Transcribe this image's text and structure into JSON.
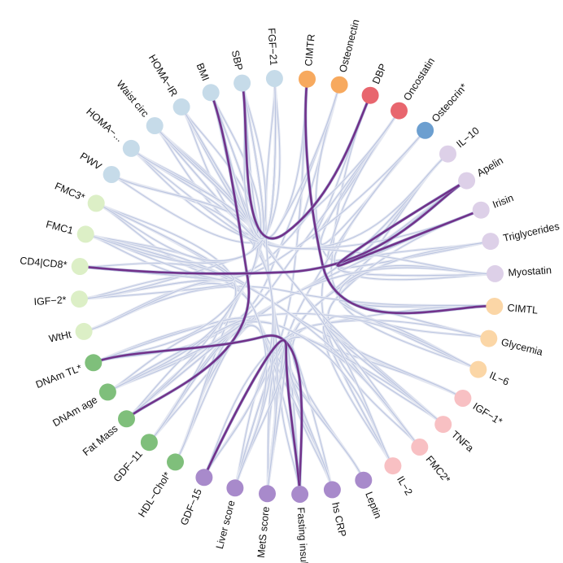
{
  "diagram": {
    "type": "hierarchical edge bundling (circular dendrogram)",
    "colors": {
      "bundle_light": "#e4e8f2",
      "bundle_mid": "#9aaad4",
      "bundle_dark": "#6e2a86",
      "bundle_accent": "#5a1572"
    },
    "nodes": [
      {
        "label": "CIMTR",
        "color": "#f7a95e",
        "group": "orange"
      },
      {
        "label": "Osteonectin",
        "color": "#f7a95e",
        "group": "orange"
      },
      {
        "label": "DBP",
        "color": "#e8666e",
        "group": "red"
      },
      {
        "label": "Oncostatin",
        "color": "#e8666e",
        "group": "red"
      },
      {
        "label": "Osteocrin*",
        "color": "#6c9fd0",
        "group": "blue"
      },
      {
        "label": "IL−10",
        "color": "#ddd0e8",
        "group": "lavender"
      },
      {
        "label": "Apelin",
        "color": "#ddd0e8",
        "group": "lavender"
      },
      {
        "label": "Irisin",
        "color": "#ddd0e8",
        "group": "lavender"
      },
      {
        "label": "Triglycerides",
        "color": "#ddd0e8",
        "group": "lavender"
      },
      {
        "label": "Myostatin",
        "color": "#ddd0e8",
        "group": "lavender"
      },
      {
        "label": "CIMTL",
        "color": "#fbd6a6",
        "group": "peach"
      },
      {
        "label": "Glycemia",
        "color": "#fbd6a6",
        "group": "peach"
      },
      {
        "label": "IL−6",
        "color": "#fbd6a6",
        "group": "peach"
      },
      {
        "label": "IGF−1*",
        "color": "#f8c0c3",
        "group": "pink"
      },
      {
        "label": "TNFa",
        "color": "#f8c0c3",
        "group": "pink"
      },
      {
        "label": "FMC2*",
        "color": "#f8c0c3",
        "group": "pink"
      },
      {
        "label": "IL−2",
        "color": "#f8c0c3",
        "group": "pink"
      },
      {
        "label": "Leptin",
        "color": "#a88acb",
        "group": "purple"
      },
      {
        "label": "hs CRP",
        "color": "#a88acb",
        "group": "purple"
      },
      {
        "label": "Fasting insulin",
        "color": "#a88acb",
        "group": "purple"
      },
      {
        "label": "MetS score",
        "color": "#a88acb",
        "group": "purple"
      },
      {
        "label": "Liver score",
        "color": "#a88acb",
        "group": "purple"
      },
      {
        "label": "GDF−15",
        "color": "#a88acb",
        "group": "purple"
      },
      {
        "label": "HDL−Chol*",
        "color": "#7fbf7b",
        "group": "green"
      },
      {
        "label": "GDF−11",
        "color": "#7fbf7b",
        "group": "green"
      },
      {
        "label": "Fat Mass",
        "color": "#7fbf7b",
        "group": "green"
      },
      {
        "label": "DNAm age",
        "color": "#7fbf7b",
        "group": "green"
      },
      {
        "label": "DNAm TL*",
        "color": "#7fbf7b",
        "group": "green"
      },
      {
        "label": "WtHt",
        "color": "#dcefc6",
        "group": "lightgreen"
      },
      {
        "label": "IGF−2*",
        "color": "#dcefc6",
        "group": "lightgreen"
      },
      {
        "label": "CD4|CD8*",
        "color": "#dcefc6",
        "group": "lightgreen"
      },
      {
        "label": "FMC1",
        "color": "#dcefc6",
        "group": "lightgreen"
      },
      {
        "label": "FMC3*",
        "color": "#dcefc6",
        "group": "lightgreen"
      },
      {
        "label": "PWV",
        "color": "#c6dbe9",
        "group": "lightblue"
      },
      {
        "label": "HOMA−...",
        "color": "#c6dbe9",
        "group": "lightblue"
      },
      {
        "label": "Waist circ",
        "color": "#c6dbe9",
        "group": "lightblue"
      },
      {
        "label": "HOMA−IR",
        "color": "#c6dbe9",
        "group": "lightblue"
      },
      {
        "label": "BMI",
        "color": "#c6dbe9",
        "group": "lightblue"
      },
      {
        "label": "SBP",
        "color": "#c6dbe9",
        "group": "lightblue"
      },
      {
        "label": "FGF−21",
        "color": "#c6dbe9",
        "group": "lightblue"
      }
    ],
    "strong_links": [
      [
        "CIMTR",
        "CIMTL"
      ],
      [
        "DBP",
        "SBP"
      ],
      [
        "BMI",
        "Fat Mass"
      ],
      [
        "CD4|CD8*",
        "Apelin"
      ],
      [
        "DNAm TL*",
        "Fasting insulin"
      ],
      [
        "Fasting insulin",
        "GDF−15"
      ],
      [
        "Irisin",
        "Apelin"
      ]
    ]
  }
}
